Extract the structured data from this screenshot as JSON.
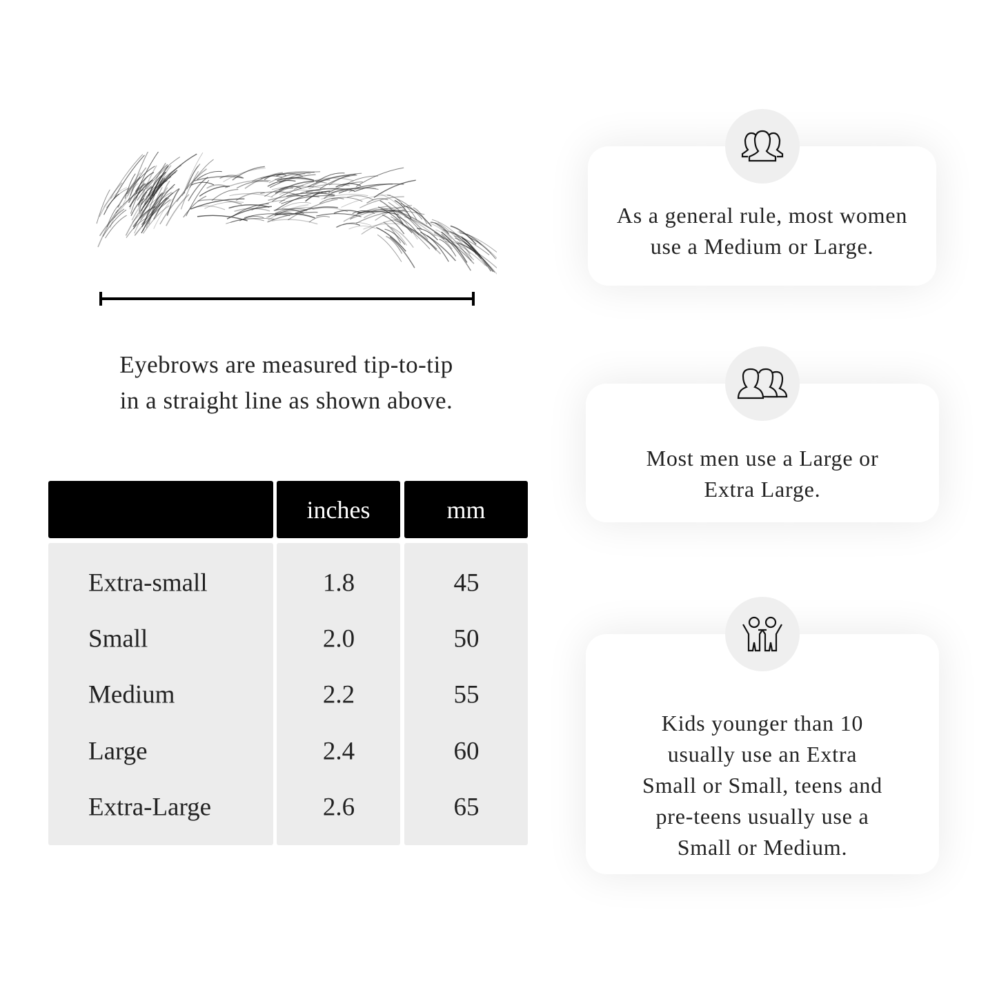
{
  "measurement": {
    "caption_line1": "Eyebrows are measured tip-to-tip",
    "caption_line2": "in a straight line as shown above."
  },
  "size_table": {
    "headers": [
      "",
      "inches",
      "mm"
    ],
    "rows": [
      {
        "size": "Extra-small",
        "inches": "1.8",
        "mm": "45"
      },
      {
        "size": "Small",
        "inches": "2.0",
        "mm": "50"
      },
      {
        "size": "Medium",
        "inches": "2.2",
        "mm": "55"
      },
      {
        "size": "Large",
        "inches": "2.4",
        "mm": "60"
      },
      {
        "size": "Extra-Large",
        "inches": "2.6",
        "mm": "65"
      }
    ]
  },
  "cards": [
    {
      "icon": "women-group-icon",
      "text": "As a general rule, most women\nuse a Medium or Large."
    },
    {
      "icon": "men-group-icon",
      "text": "Most men use a Large or\nExtra Large."
    },
    {
      "icon": "kids-icon",
      "text": "Kids younger than 10\nusually use an Extra\nSmall or Small, teens and\npre-teens usually use a\nSmall or Medium."
    }
  ]
}
